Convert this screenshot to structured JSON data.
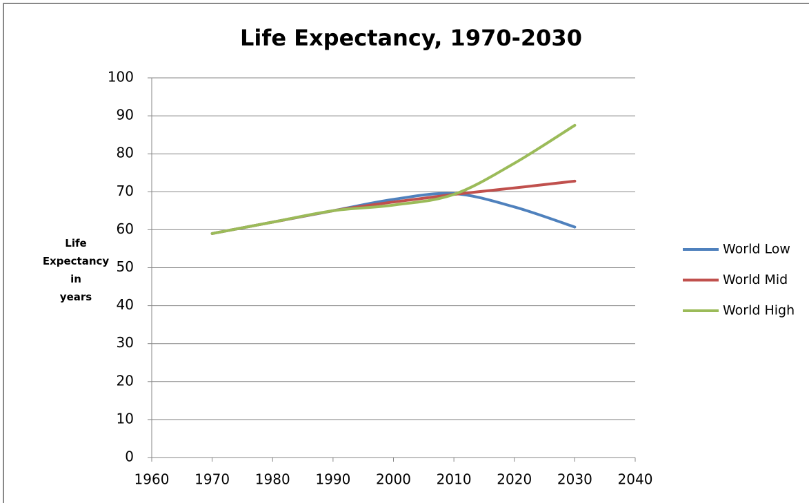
{
  "chart_data": {
    "type": "line",
    "title": "Life Expectancy, 1970-2030",
    "ylabel": "Life\nExpectancy\nin\nyears",
    "x": [
      1970,
      1980,
      1990,
      2000,
      2010,
      2020,
      2030
    ],
    "series": [
      {
        "name": "World Low",
        "color": "#4f81bd",
        "values": [
          59,
          62,
          65,
          68,
          69.5,
          66,
          60.7
        ]
      },
      {
        "name": "World Mid",
        "color": "#c0504d",
        "values": [
          59,
          62,
          65,
          67.3,
          69.3,
          71,
          72.8
        ]
      },
      {
        "name": "World High",
        "color": "#9bbb59",
        "values": [
          59,
          62,
          65,
          66.5,
          69.3,
          77.5,
          87.5
        ]
      }
    ],
    "xlim": [
      1960,
      2040
    ],
    "xticks": [
      1960,
      1970,
      1980,
      1990,
      2000,
      2010,
      2020,
      2030,
      2040
    ],
    "ylim": [
      0,
      100
    ],
    "yticks": [
      0,
      10,
      20,
      30,
      40,
      50,
      60,
      70,
      80,
      90,
      100
    ],
    "grid": true,
    "legend": "right",
    "smooth": true
  }
}
